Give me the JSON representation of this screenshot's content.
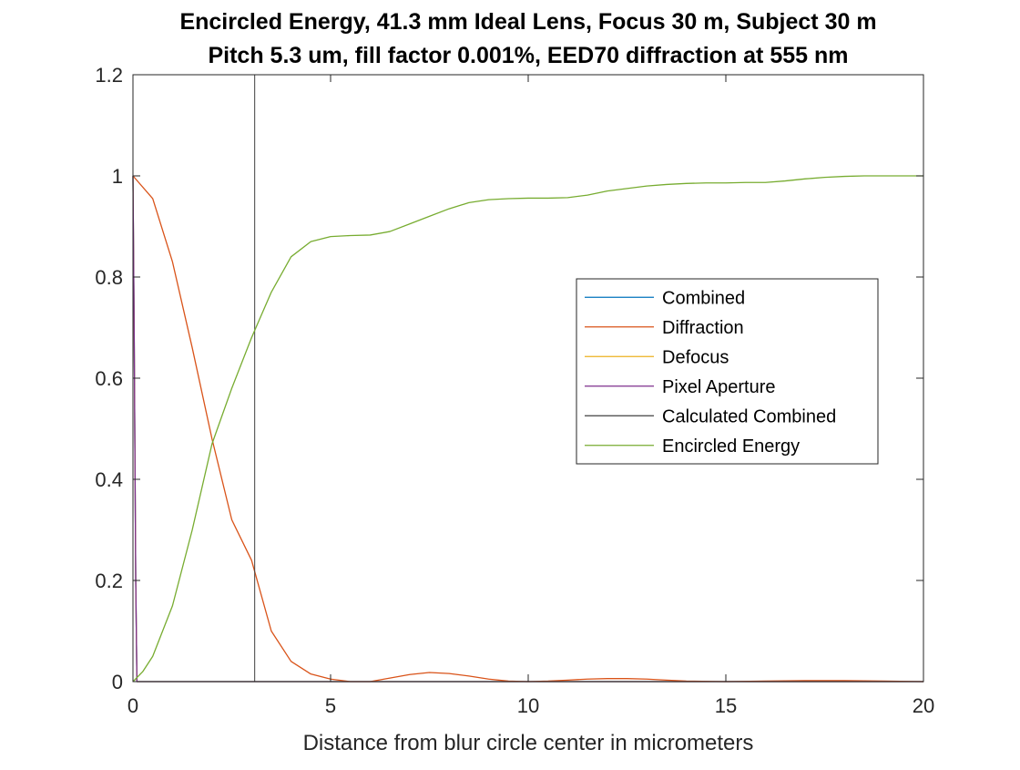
{
  "chart_data": {
    "type": "line",
    "title": "Encircled Energy, 41.3 mm Ideal Lens, Focus 30 m, Subject 30 m",
    "subtitle": "Pitch 5.3 um, fill factor 0.001%, EED70 diffraction at 555 nm",
    "xlabel": "Distance from blur circle center in micrometers",
    "ylabel": "",
    "xlim": [
      0,
      20
    ],
    "ylim": [
      0,
      1.2
    ],
    "xticks": [
      "0",
      "5",
      "10",
      "15",
      "20"
    ],
    "xtick_values": [
      0,
      5,
      10,
      15,
      20
    ],
    "yticks": [
      "0",
      "0.2",
      "0.4",
      "0.6",
      "0.8",
      "1",
      "1.2"
    ],
    "ytick_values": [
      0,
      0.2,
      0.4,
      0.6,
      0.8,
      1,
      1.2
    ],
    "grid": false,
    "legend_position": "right-center",
    "series": [
      {
        "name": "Combined",
        "color": "#0072BD",
        "x": [
          0,
          0.03,
          0.07,
          0.1,
          20
        ],
        "y": [
          1.0,
          0.7,
          0.2,
          0.0,
          0.0
        ]
      },
      {
        "name": "Diffraction",
        "color": "#D95319",
        "x": [
          0,
          0.5,
          1,
          1.5,
          2,
          2.5,
          3,
          3.5,
          4,
          4.5,
          5,
          5.5,
          6,
          6.5,
          7,
          7.5,
          8,
          8.5,
          9,
          9.5,
          10,
          10.5,
          11,
          11.5,
          12,
          12.5,
          13,
          13.5,
          14,
          15,
          16,
          17,
          18,
          19,
          20
        ],
        "y": [
          1.0,
          0.955,
          0.83,
          0.66,
          0.48,
          0.32,
          0.24,
          0.1,
          0.04,
          0.015,
          0.005,
          0.0,
          0.0,
          0.007,
          0.014,
          0.018,
          0.016,
          0.011,
          0.005,
          0.001,
          0.0,
          0.001,
          0.003,
          0.005,
          0.006,
          0.006,
          0.005,
          0.003,
          0.001,
          0.0,
          0.001,
          0.002,
          0.002,
          0.001,
          0.0
        ]
      },
      {
        "name": "Defocus",
        "color": "#EDB120",
        "x": [
          0,
          0.03,
          0.07,
          0.1,
          20
        ],
        "y": [
          1.0,
          0.7,
          0.2,
          0.0,
          0.0
        ]
      },
      {
        "name": "Pixel Aperture",
        "color": "#7E2F8E",
        "x": [
          0,
          0.03,
          0.07,
          0.1,
          20
        ],
        "y": [
          1.0,
          0.7,
          0.2,
          0.0,
          0.0
        ]
      },
      {
        "name": "Calculated Combined",
        "color": "#404040",
        "x": [
          3.08,
          3.08
        ],
        "y": [
          0,
          1.2
        ]
      },
      {
        "name": "Encircled Energy",
        "color": "#77AC30",
        "x": [
          0,
          0.25,
          0.5,
          1,
          1.5,
          2,
          2.5,
          3,
          3.5,
          4,
          4.5,
          5,
          5.5,
          6,
          6.5,
          7,
          7.5,
          8,
          8.5,
          9,
          9.5,
          10,
          10.5,
          11,
          11.5,
          12,
          12.5,
          13,
          13.5,
          14,
          14.5,
          15,
          15.5,
          16,
          16.5,
          17,
          17.5,
          18,
          18.5,
          19,
          19.5,
          20
        ],
        "y": [
          0.0,
          0.02,
          0.05,
          0.15,
          0.3,
          0.47,
          0.58,
          0.68,
          0.77,
          0.84,
          0.87,
          0.88,
          0.882,
          0.883,
          0.89,
          0.905,
          0.92,
          0.935,
          0.947,
          0.953,
          0.955,
          0.956,
          0.956,
          0.957,
          0.962,
          0.97,
          0.975,
          0.98,
          0.983,
          0.985,
          0.986,
          0.986,
          0.987,
          0.987,
          0.99,
          0.994,
          0.997,
          0.999,
          1.0,
          1.0,
          1.0,
          1.0
        ]
      }
    ]
  }
}
